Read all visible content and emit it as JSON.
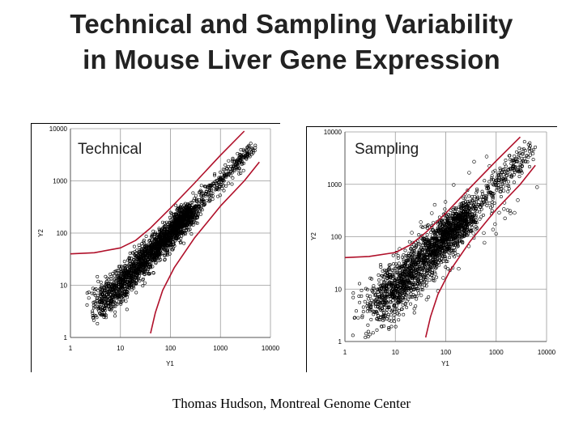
{
  "slide": {
    "title_line1": "Technical and Sampling Variability",
    "title_line2": "in Mouse Liver Gene Expression",
    "footer": "Thomas Hudson, Montreal Genome Center"
  },
  "colors": {
    "points": "#000000",
    "bounds": "#b0102a",
    "grid": "#9a9a9a",
    "frame": "#000000"
  },
  "chart_data": [
    {
      "type": "scatter",
      "title": "Technical",
      "xlabel": "Y1",
      "ylabel": "Y2",
      "xscale": "log",
      "yscale": "log",
      "xlim": [
        1,
        10000
      ],
      "ylim": [
        1,
        10000
      ],
      "x_ticks": [
        "1",
        "10",
        "100",
        "1000",
        "10000"
      ],
      "y_ticks": [
        "1",
        "10",
        "100",
        "1000",
        "10000"
      ],
      "grid": true,
      "spread": 0.16,
      "bounds": {
        "upper": [
          [
            1,
            40
          ],
          [
            3,
            42
          ],
          [
            10,
            52
          ],
          [
            20,
            72
          ],
          [
            40,
            125
          ],
          [
            100,
            300
          ],
          [
            300,
            900
          ],
          [
            1000,
            3100
          ],
          [
            3000,
            9000
          ]
        ],
        "lower": [
          [
            40,
            1.2
          ],
          [
            50,
            3
          ],
          [
            70,
            8
          ],
          [
            120,
            22
          ],
          [
            300,
            80
          ],
          [
            1000,
            330
          ],
          [
            3000,
            1000
          ],
          [
            6000,
            2300
          ]
        ]
      }
    },
    {
      "type": "scatter",
      "title": "Sampling",
      "xlabel": "Y1",
      "ylabel": "Y2",
      "xscale": "log",
      "yscale": "log",
      "xlim": [
        1,
        10000
      ],
      "ylim": [
        1,
        10000
      ],
      "x_ticks": [
        "1",
        "10",
        "100",
        "1000",
        "10000"
      ],
      "y_ticks": [
        "1",
        "10",
        "100",
        "1000",
        "10000"
      ],
      "grid": true,
      "spread": 0.24,
      "bounds": {
        "upper": [
          [
            1,
            40
          ],
          [
            3,
            42
          ],
          [
            10,
            50
          ],
          [
            20,
            70
          ],
          [
            40,
            120
          ],
          [
            100,
            280
          ],
          [
            300,
            850
          ],
          [
            1000,
            2800
          ],
          [
            3000,
            8000
          ]
        ],
        "lower": [
          [
            40,
            1.2
          ],
          [
            50,
            3
          ],
          [
            70,
            8
          ],
          [
            120,
            22
          ],
          [
            300,
            80
          ],
          [
            1000,
            330
          ],
          [
            3000,
            1000
          ],
          [
            6000,
            2300
          ]
        ]
      }
    }
  ]
}
